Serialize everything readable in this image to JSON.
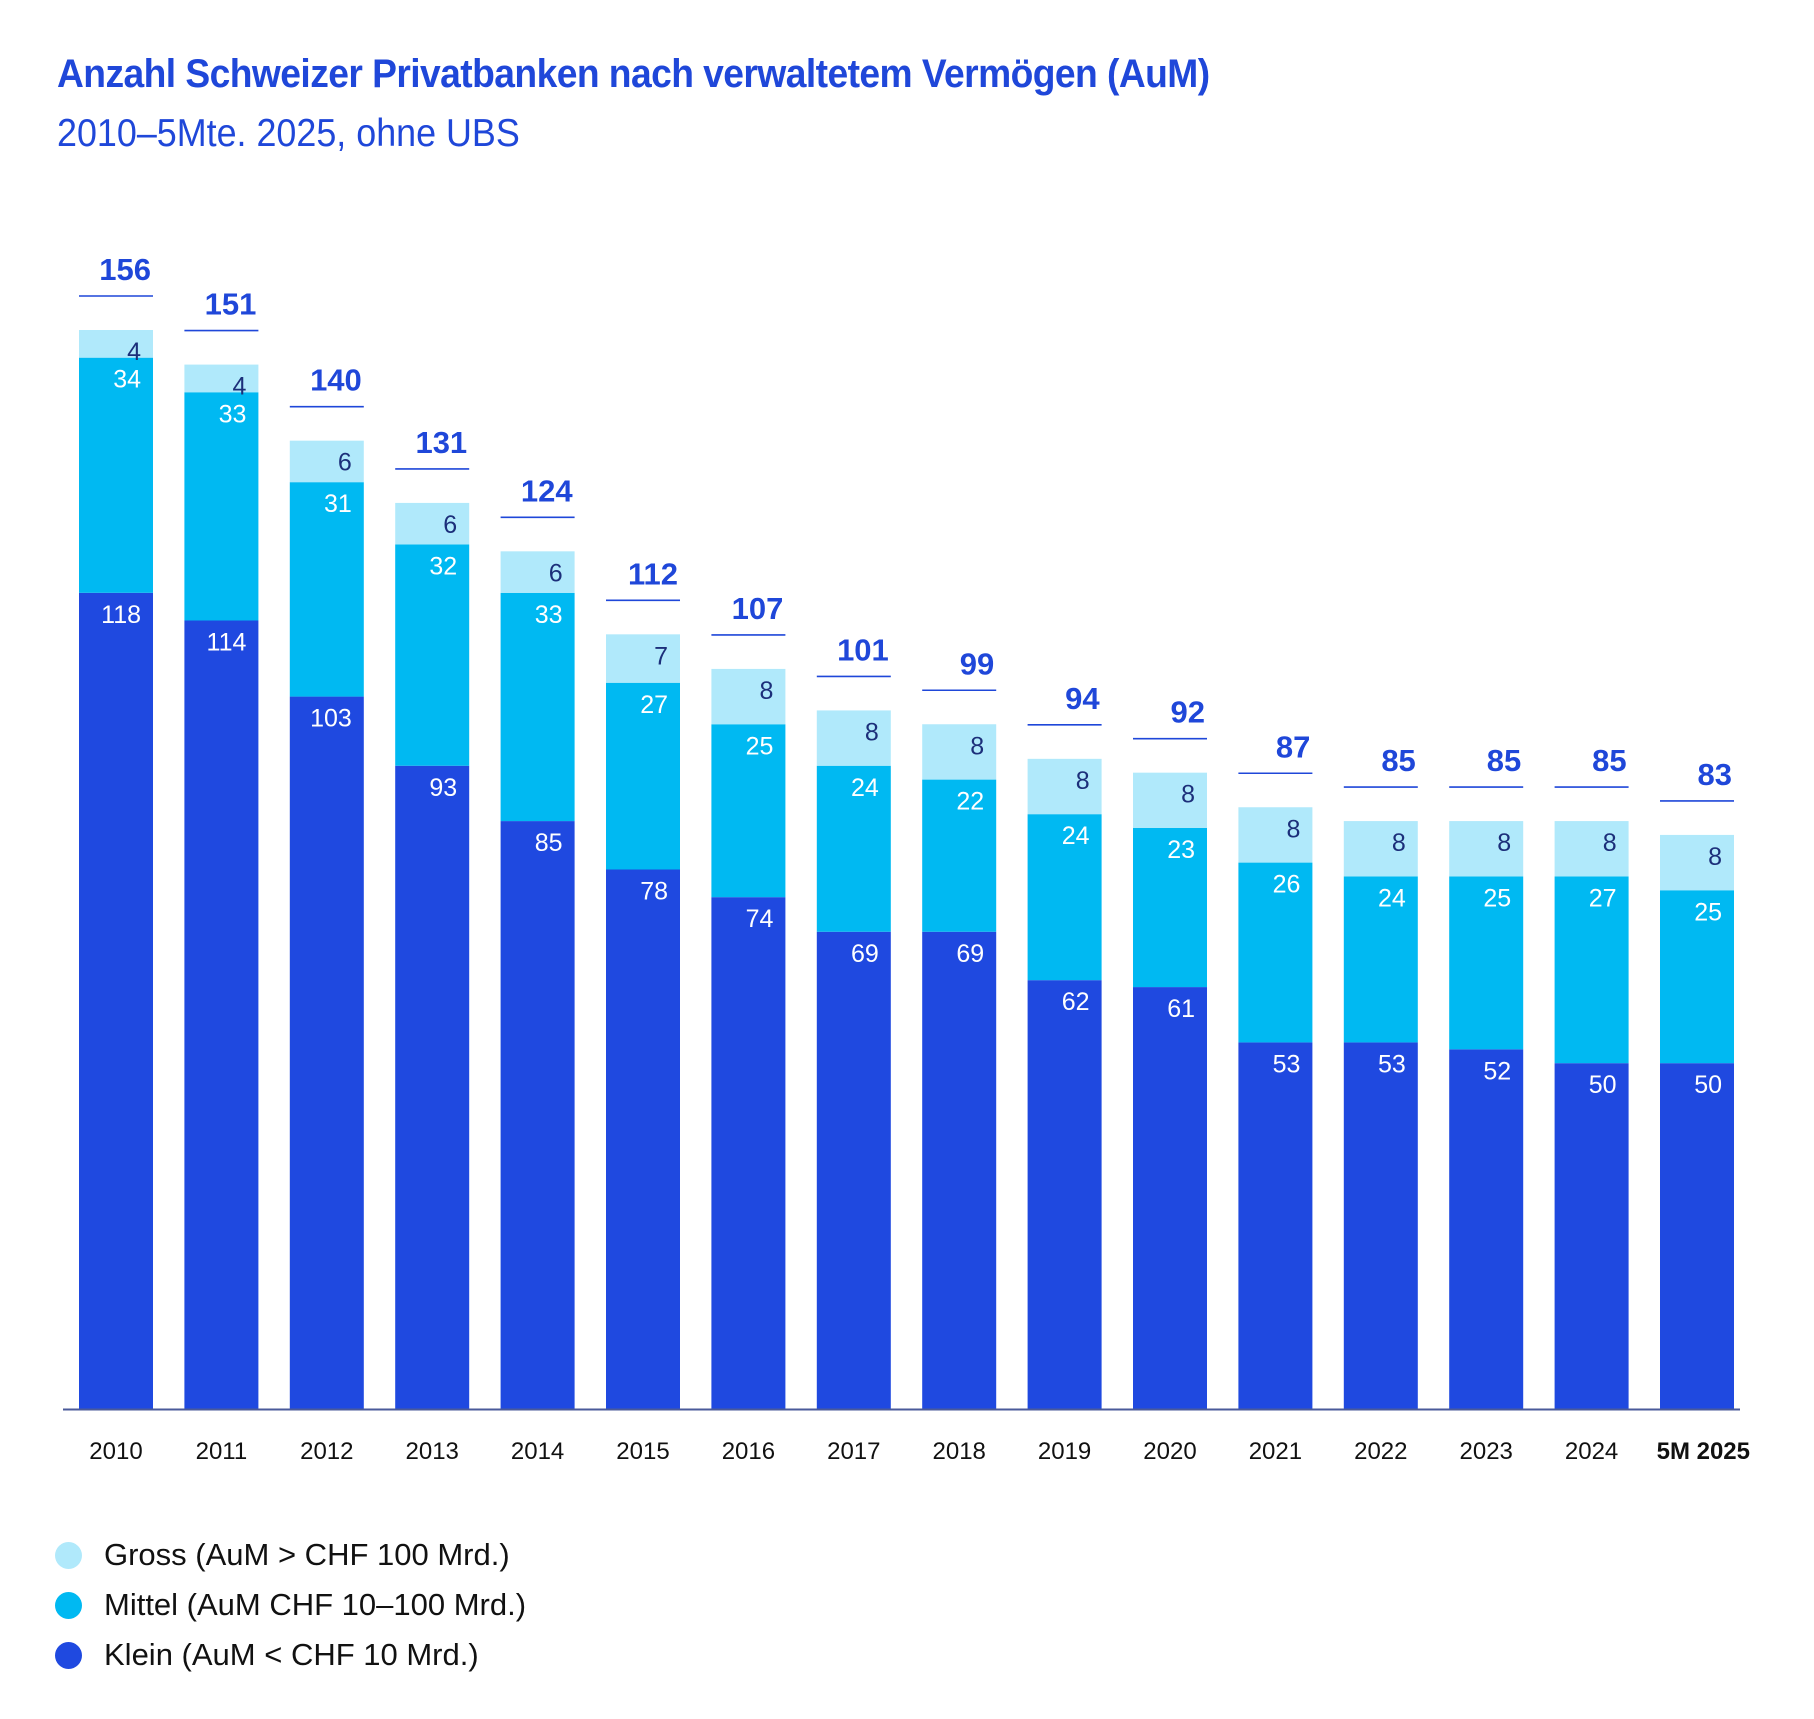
{
  "header": {
    "title": "Anzahl Schweizer Privatbanken nach verwaltetem Vermögen (AuM)",
    "subtitle": "2010–5Mte. 2025, ohne UBS"
  },
  "colors": {
    "gross": "#b0e9fb",
    "mittel": "#00b9f2",
    "klein": "#1f49e0",
    "accent": "#1f47d9",
    "axis": "#4a5a9a",
    "gross_label": "#1c2f7a",
    "inner_label": "#ffffff",
    "tick_label": "#111111"
  },
  "legend": {
    "items": [
      {
        "key": "gross",
        "label": "Gross (AuM > CHF 100 Mrd.)"
      },
      {
        "key": "mittel",
        "label": "Mittel (AuM CHF 10–100 Mrd.)"
      },
      {
        "key": "klein",
        "label": "Klein (AuM < CHF 10 Mrd.)"
      }
    ]
  },
  "chart_data": {
    "type": "bar",
    "stacked": true,
    "title": "Anzahl Schweizer Privatbanken nach verwaltetem Vermögen (AuM)",
    "subtitle": "2010–5Mte. 2025, ohne UBS",
    "xlabel": "",
    "ylabel": "",
    "ylim": [
      0,
      156
    ],
    "grid": false,
    "legend_position": "bottom-left",
    "categories": [
      "2010",
      "2011",
      "2012",
      "2013",
      "2014",
      "2015",
      "2016",
      "2017",
      "2018",
      "2019",
      "2020",
      "2021",
      "2022",
      "2023",
      "2024",
      "5M 2025"
    ],
    "highlight_category": "5M 2025",
    "series": [
      {
        "name": "Klein (AuM < CHF 10 Mrd.)",
        "key": "klein",
        "values": [
          118,
          114,
          103,
          93,
          85,
          78,
          74,
          69,
          69,
          62,
          61,
          53,
          53,
          52,
          50,
          50
        ]
      },
      {
        "name": "Mittel (AuM CHF 10–100 Mrd.)",
        "key": "mittel",
        "values": [
          34,
          33,
          31,
          32,
          33,
          27,
          25,
          24,
          22,
          24,
          23,
          26,
          24,
          25,
          27,
          25
        ]
      },
      {
        "name": "Gross (AuM > CHF 100 Mrd.)",
        "key": "gross",
        "values": [
          4,
          4,
          6,
          6,
          6,
          7,
          8,
          8,
          8,
          8,
          8,
          8,
          8,
          8,
          8,
          8
        ]
      }
    ],
    "totals": [
      156,
      151,
      140,
      131,
      124,
      112,
      107,
      101,
      99,
      94,
      92,
      87,
      85,
      85,
      85,
      83
    ]
  }
}
